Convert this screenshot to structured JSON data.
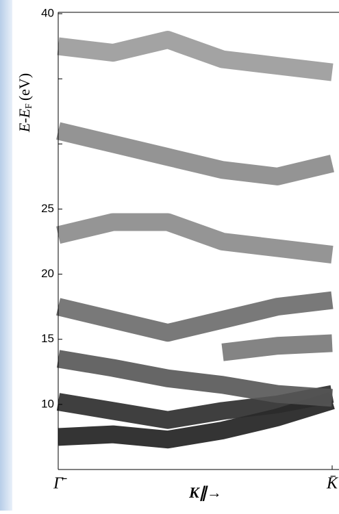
{
  "chart_data": {
    "type": "line",
    "y_label": {
      "main": "E-E",
      "sub": "F",
      "unit": "(eV)"
    },
    "x_label": "K∥→",
    "x": [
      0,
      0.2,
      0.4,
      0.6,
      0.8,
      1
    ],
    "xlim": [
      0,
      1
    ],
    "xticks": [
      {
        "value": 0,
        "label": "Γ̄"
      },
      {
        "value": 1,
        "label": "K̄"
      }
    ],
    "ylim": [
      5,
      40
    ],
    "yticks": [
      10,
      15,
      20,
      25,
      {
        "value": 30,
        "label": null
      },
      {
        "value": 35,
        "label": null
      },
      40
    ],
    "series": [
      {
        "color": "#1e1e1e",
        "values": [
          7.5,
          7.7,
          7.3,
          8.0,
          9.0,
          10.3
        ]
      },
      {
        "color": "#2a2a2a",
        "values": [
          10.2,
          9.5,
          8.8,
          9.5,
          10.0,
          10.8
        ]
      },
      {
        "color": "#555555",
        "values": [
          13.5,
          12.8,
          12.0,
          11.5,
          10.8,
          10.5
        ]
      },
      {
        "color": "#777777",
        "values": [
          null,
          null,
          null,
          14.0,
          14.5,
          14.7
        ]
      },
      {
        "color": "#6a6a6a",
        "values": [
          17.5,
          16.5,
          15.5,
          16.5,
          17.5,
          18.0
        ]
      },
      {
        "color": "#8a8a8a",
        "values": [
          23.0,
          24.0,
          24.0,
          22.5,
          22.0,
          21.5
        ]
      },
      {
        "color": "#888888",
        "values": [
          31.0,
          30.0,
          29.0,
          28.0,
          27.5,
          28.5
        ]
      },
      {
        "color": "#999999",
        "values": [
          37.5,
          37.0,
          38.0,
          36.5,
          36.0,
          35.5
        ]
      }
    ]
  }
}
